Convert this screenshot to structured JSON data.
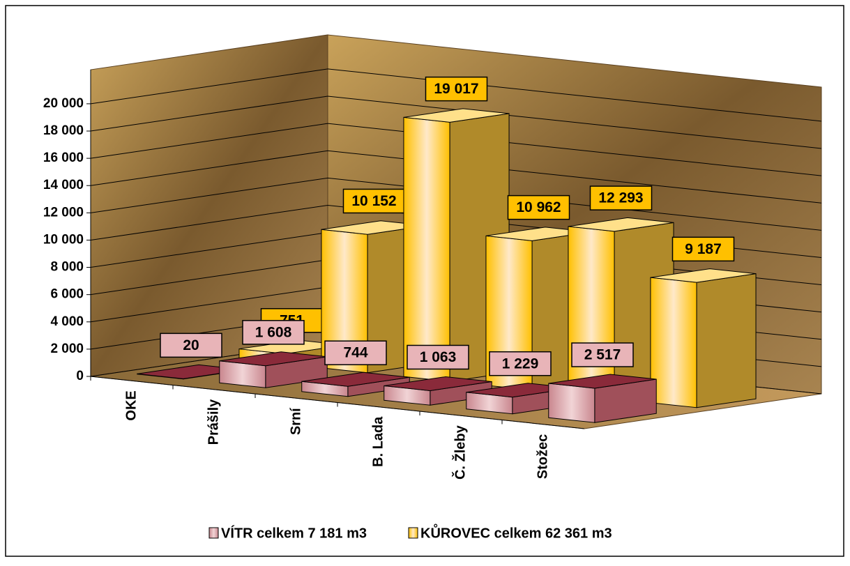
{
  "chart_data": {
    "type": "bar3d",
    "categories": [
      "OKE",
      "Prášily",
      "Srní",
      "B. Lada",
      "Č. Žleby",
      "Stožec"
    ],
    "series": [
      {
        "name": "VÍTR celkem 7 181 m3",
        "color": "#c9868e",
        "values": [
          20,
          1608,
          744,
          1063,
          1229,
          2517
        ],
        "value_labels": [
          "20",
          "1 608",
          "744",
          "1 063",
          "1 229",
          "2 517"
        ]
      },
      {
        "name": "KŮROVEC celkem 62 361 m3",
        "color": "#ffc000",
        "values": [
          751,
          10152,
          19017,
          10962,
          12293,
          9187
        ],
        "value_labels": [
          "751",
          "10 152",
          "19 017",
          "10 962",
          "12 293",
          "9 187"
        ]
      }
    ],
    "ylim": [
      0,
      22500
    ],
    "yticks": [
      0,
      {
        "value": 2000,
        "label": "2 000"
      },
      {
        "value": 4000,
        "label": "4 000"
      },
      {
        "value": 6000,
        "label": "6 000"
      },
      {
        "value": 8000,
        "label": "8 000"
      },
      {
        "value": 10000,
        "label": "10 000"
      },
      {
        "value": 12000,
        "label": "12 000"
      },
      {
        "value": 14000,
        "label": "14 000"
      },
      {
        "value": 16000,
        "label": "16 000"
      },
      {
        "value": 18000,
        "label": "18 000"
      },
      {
        "value": 20000,
        "label": "20 000"
      }
    ],
    "grid": true,
    "legend": "bottom"
  }
}
